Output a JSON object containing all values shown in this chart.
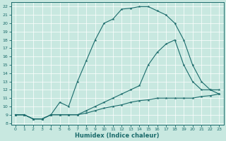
{
  "xlabel": "Humidex (Indice chaleur)",
  "background_color": "#c8e8e0",
  "line_color": "#1a6b6b",
  "xlim": [
    -0.5,
    23.5
  ],
  "ylim": [
    7.8,
    22.5
  ],
  "yticks": [
    8,
    9,
    10,
    11,
    12,
    13,
    14,
    15,
    16,
    17,
    18,
    19,
    20,
    21,
    22
  ],
  "xticks": [
    0,
    1,
    2,
    3,
    4,
    5,
    6,
    7,
    8,
    9,
    10,
    11,
    12,
    13,
    14,
    15,
    16,
    17,
    18,
    19,
    20,
    21,
    22,
    23
  ],
  "series": [
    {
      "x": [
        0,
        1,
        2,
        3,
        4,
        5,
        6,
        7,
        8,
        9,
        10,
        11,
        12,
        13,
        14,
        15,
        16,
        17,
        18,
        19,
        20,
        21,
        22,
        23
      ],
      "y": [
        9,
        9,
        8.5,
        8.5,
        9,
        10.5,
        10,
        13,
        15.5,
        18,
        20,
        20.5,
        21.7,
        21.8,
        22,
        22,
        21.5,
        21,
        20,
        18,
        15,
        13.0,
        12,
        11.5
      ]
    },
    {
      "x": [
        0,
        1,
        2,
        3,
        4,
        5,
        6,
        7,
        8,
        9,
        10,
        11,
        12,
        13,
        14,
        15,
        16,
        17,
        18,
        19,
        20,
        21,
        22,
        23
      ],
      "y": [
        9,
        9,
        8.5,
        8.5,
        9,
        9,
        9,
        9,
        9.5,
        10,
        10.5,
        11,
        11.5,
        12,
        12.5,
        15,
        16.5,
        17.5,
        18,
        15,
        13,
        12,
        12,
        12
      ]
    },
    {
      "x": [
        0,
        1,
        2,
        3,
        4,
        5,
        6,
        7,
        8,
        9,
        10,
        11,
        12,
        13,
        14,
        15,
        16,
        17,
        18,
        19,
        20,
        21,
        22,
        23
      ],
      "y": [
        9,
        9,
        8.5,
        8.5,
        9,
        9,
        9,
        9,
        9.2,
        9.5,
        9.8,
        10.0,
        10.2,
        10.5,
        10.7,
        10.8,
        11.0,
        11.0,
        11.0,
        11.0,
        11.0,
        11.2,
        11.3,
        11.5
      ]
    }
  ]
}
